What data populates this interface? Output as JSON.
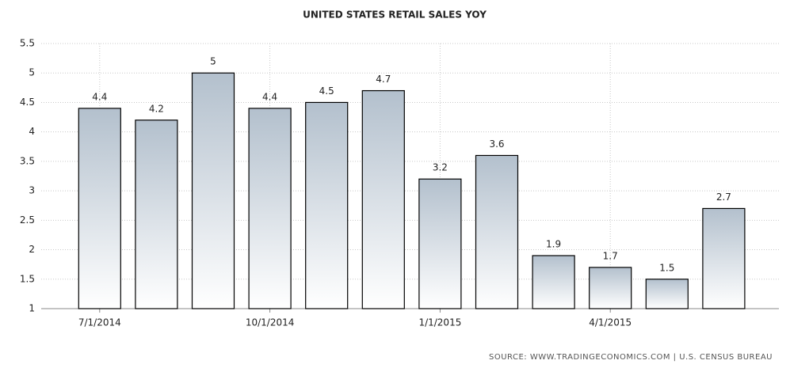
{
  "chart_data": {
    "type": "bar",
    "title": "UNITED STATES RETAIL SALES YOY",
    "categories": [
      "7/1/2014",
      null,
      null,
      "10/1/2014",
      null,
      null,
      "1/1/2015",
      null,
      null,
      "4/1/2015",
      null,
      null
    ],
    "values": [
      4.4,
      4.2,
      5,
      4.4,
      4.5,
      4.7,
      3.2,
      3.6,
      1.9,
      1.7,
      1.5,
      2.7
    ],
    "color": "#b3c0cd",
    "ylim": [
      1,
      5.5
    ],
    "yticks": [
      1,
      1.5,
      2,
      2.5,
      3,
      3.5,
      4,
      4.5,
      5,
      5.5
    ],
    "grid": true,
    "source": "SOURCE: WWW.TRADINGECONOMICS.COM | U.S. CENSUS BUREAU"
  }
}
